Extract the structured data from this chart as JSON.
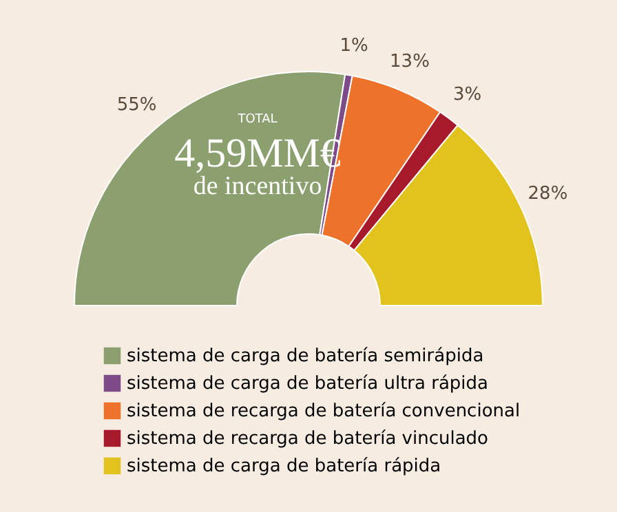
{
  "chart_data": {
    "type": "donut",
    "categories": [
      "sistema de carga de batería semirápida",
      "sistema de carga de batería ultra rápida",
      "sistema de recarga de batería convencional",
      "sistema de recarga de batería vinculado",
      "sistema de carga de batería rápida"
    ],
    "values": [
      55,
      1,
      13,
      3,
      28
    ],
    "colors": [
      "#8c9f6f",
      "#7d4b87",
      "#ee7229",
      "#a61a2b",
      "#e2c21d"
    ],
    "value_labels": [
      "55%",
      "1%",
      "13%",
      "3%",
      "28%"
    ],
    "annotations": [
      "TOTAL",
      "4,59MM€",
      "de incentivo"
    ],
    "legend": "bottom"
  }
}
